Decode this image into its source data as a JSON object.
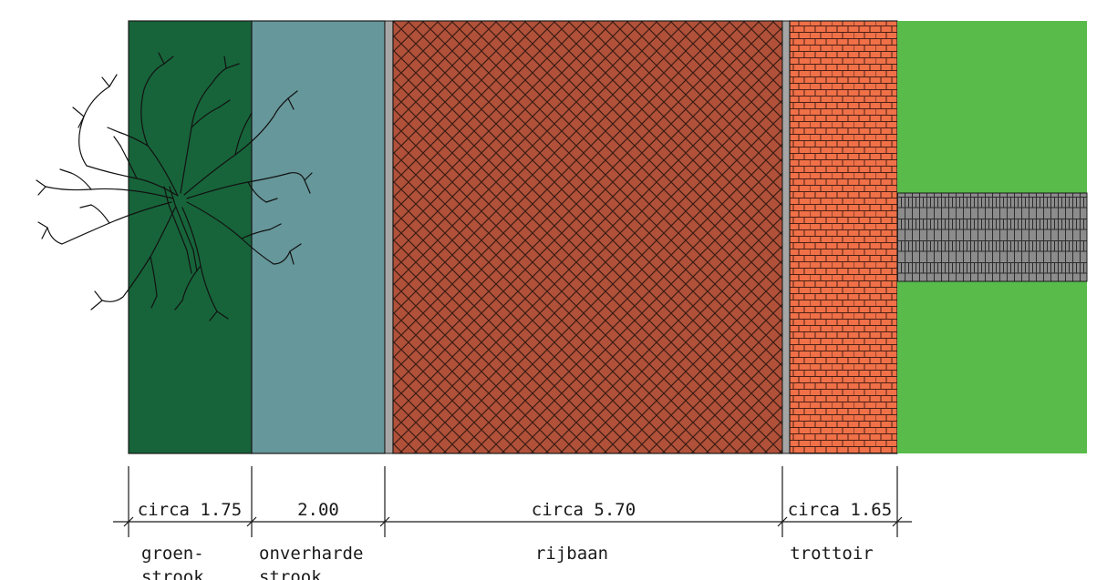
{
  "diagram": {
    "zones": [
      {
        "id": "groenstrook",
        "color": "#17643a"
      },
      {
        "id": "onverharde-strook",
        "color": "#66979a"
      },
      {
        "id": "rijbaan",
        "color": "#b1513a",
        "pattern_line": "#3a1b12"
      },
      {
        "id": "trottoir",
        "color": "#f07048",
        "pattern_line": "#4a2016"
      },
      {
        "id": "gras",
        "color": "#58bb4a"
      },
      {
        "id": "pad",
        "color": "#8c8c8c"
      }
    ],
    "curb_color": "#a6a6a6",
    "dimensions": [
      {
        "label": "circa 1.75"
      },
      {
        "label": "2.00"
      },
      {
        "label": "circa 5.70"
      },
      {
        "label": "circa 1.65"
      }
    ],
    "names": [
      {
        "line1": "groen-",
        "line2": "strook"
      },
      {
        "line1": "onverharde",
        "line2": "strook"
      },
      {
        "line1": "rijbaan",
        "line2": ""
      },
      {
        "line1": "trottoir",
        "line2": ""
      }
    ]
  }
}
